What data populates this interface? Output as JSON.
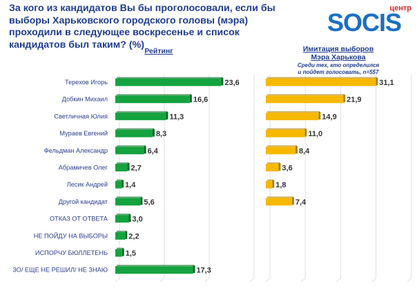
{
  "header": {
    "title": "За кого из кандидатов Вы бы проголосовали, если бы выборы Харьковского городского головы (мэра) проходили в следующее воскресенье и список кандидатов был таким? (%)",
    "logo": {
      "top": "центр",
      "word": "SOCIS"
    }
  },
  "colors": {
    "rating_bar": "#14a33f",
    "rating_bar_edge": "#0b6b27",
    "simulation_bar": "#f7b800",
    "simulation_bar_edge": "#b07f00",
    "gridline": "#dcdfe8"
  },
  "chart_data": [
    {
      "type": "bar",
      "orientation": "horizontal",
      "title": "Рейтинг",
      "subtitle": "",
      "xlabel": "",
      "ylabel": "",
      "xlim": [
        0,
        30
      ],
      "grid": true,
      "categories": [
        "Терехов Игорь",
        "Добкин Михаил",
        "Светличная Юлия",
        "Мураев Евгений",
        "Фельдман Александр",
        "Абрамичев Олег",
        "Лесик Андрей",
        "Другой кандидат",
        "ОТКАЗ ОТ ОТВЕТА",
        "НЕ ПОЙДУ НА ВЫБОРЫ",
        "ИСПОРЧУ БЮЛЛЕТЕНЬ",
        "ЗО/ ЕЩЕ НЕ РЕШИЛ/ НЕ ЗНАЮ"
      ],
      "values": [
        23.6,
        16.6,
        11.3,
        8.3,
        6.4,
        2.7,
        1.4,
        5.6,
        3.0,
        2.2,
        1.5,
        17.3
      ],
      "value_labels": [
        "23,6",
        "16,6",
        "11,3",
        "8,3",
        "6,4",
        "2,7",
        "1,4",
        "5,6",
        "3,0",
        "2,2",
        "1,5",
        "17,3"
      ]
    },
    {
      "type": "bar",
      "orientation": "horizontal",
      "title": "Имитация выборов Мэра Харькова",
      "title_lines": [
        "Имитация выборов",
        "Мэра Харькова"
      ],
      "subtitle": "Среди тех, кто определился и пойдет голосовать, n=557",
      "subtitle_lines": [
        "Среди тех, кто определился",
        "и пойдет голосовать, n=557"
      ],
      "xlabel": "",
      "ylabel": "",
      "xlim": [
        0,
        40
      ],
      "grid": true,
      "categories": [
        "Терехов Игорь",
        "Добкин Михаил",
        "Светличная Юлия",
        "Мураев Евгений",
        "Фельдман Александр",
        "Абрамичев Олег",
        "Лесик Андрей",
        "Другой кандидат"
      ],
      "values": [
        31.1,
        21.9,
        14.9,
        11.0,
        8.4,
        3.6,
        1.8,
        7.4
      ],
      "value_labels": [
        "31,1",
        "21,9",
        "14,9",
        "11,0",
        "8,4",
        "3,6",
        "1,8",
        "7,4"
      ]
    }
  ]
}
